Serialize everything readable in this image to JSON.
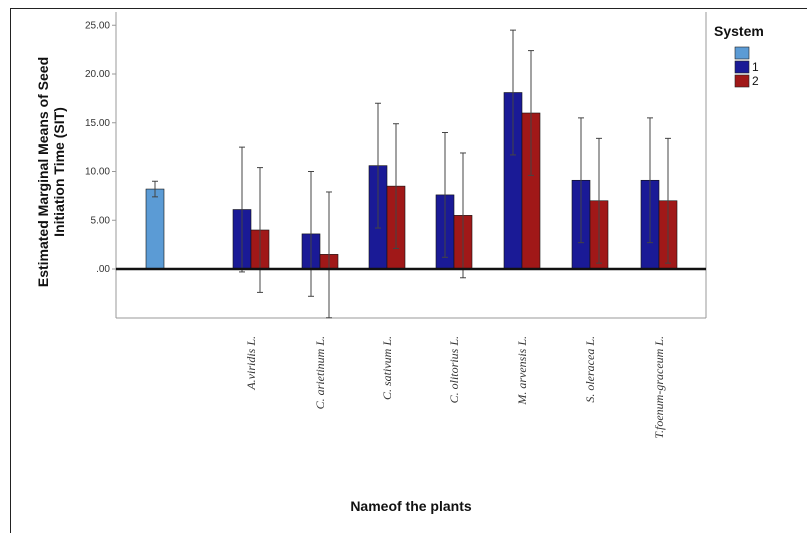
{
  "chart_data": {
    "type": "bar",
    "title": "",
    "xlabel": "Nameof the plants",
    "ylabel_line1": "Estimated Marginal Means of Seed",
    "ylabel_line2": "Initiation Time (SIT)",
    "ylim": [
      -5,
      26
    ],
    "yticks": [
      {
        "value": 0,
        "label": ".00"
      },
      {
        "value": 5,
        "label": "5.00"
      },
      {
        "value": 10,
        "label": "10.00"
      },
      {
        "value": 15,
        "label": "15.00"
      },
      {
        "value": 20,
        "label": "20.00"
      },
      {
        "value": 25,
        "label": "25.00"
      }
    ],
    "grid": false,
    "legend": {
      "title": "System",
      "position": "top-right",
      "entries": [
        {
          "label": "",
          "color": "#5b9bd5"
        },
        {
          "label": "1",
          "color": "#1a1a96"
        },
        {
          "label": "2",
          "color": "#a01818"
        }
      ]
    },
    "categories": [
      "",
      "A.viridis L.",
      "C. arietinum L.",
      "C. sativum L.",
      "C. olitorius L.",
      "M. arvensis L.",
      "S. oleracea L.",
      "T.foenum-graceum L."
    ],
    "series": [
      {
        "name": "",
        "color": "#5b9bd5",
        "values": [
          8.2,
          null,
          null,
          null,
          null,
          null,
          null,
          null
        ],
        "err_low": [
          7.4,
          null,
          null,
          null,
          null,
          null,
          null,
          null
        ],
        "err_high": [
          9.0,
          null,
          null,
          null,
          null,
          null,
          null,
          null
        ]
      },
      {
        "name": "1",
        "color": "#1a1a96",
        "values": [
          null,
          6.1,
          3.6,
          10.6,
          7.6,
          18.1,
          9.1,
          9.1
        ],
        "err_low": [
          null,
          -0.3,
          -2.8,
          4.2,
          1.2,
          11.7,
          2.7,
          2.7
        ],
        "err_high": [
          null,
          12.5,
          10.0,
          17.0,
          14.0,
          24.5,
          15.5,
          15.5
        ]
      },
      {
        "name": "2",
        "color": "#a01818",
        "values": [
          null,
          4.0,
          1.5,
          8.5,
          5.5,
          16.0,
          7.0,
          7.0
        ],
        "err_low": [
          null,
          -2.4,
          -5.0,
          2.1,
          -0.9,
          9.6,
          0.6,
          0.6
        ],
        "err_high": [
          null,
          10.4,
          7.9,
          14.9,
          11.9,
          22.4,
          13.4,
          13.4
        ]
      }
    ]
  }
}
